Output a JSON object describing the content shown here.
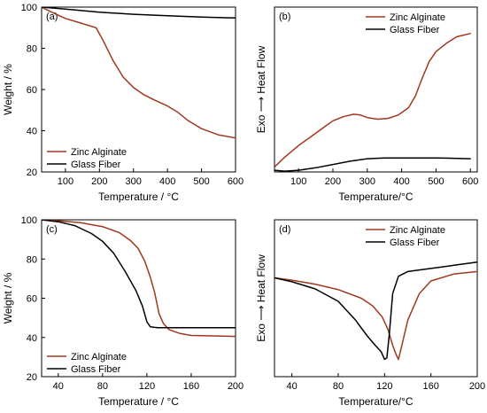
{
  "colors": {
    "zinc_alginate": "#a0381f",
    "glass_fiber": "#000000"
  },
  "chart_data": [
    {
      "type": "line",
      "panel": "(a)",
      "xlabel": "Temperature / °C",
      "ylabel": "Weight / %",
      "xlim": [
        30,
        600
      ],
      "ylim": [
        20,
        100
      ],
      "xticks": [
        100,
        200,
        300,
        400,
        500,
        600
      ],
      "yticks": [
        20,
        40,
        60,
        80,
        100
      ],
      "show_ytick_labels": true,
      "legend_position": "bottom-left",
      "series": [
        {
          "name": "Zinc Alginate",
          "color": "#a0381f",
          "x": [
            30,
            60,
            100,
            150,
            190,
            210,
            240,
            270,
            300,
            330,
            360,
            400,
            430,
            460,
            500,
            550,
            600
          ],
          "y": [
            100,
            97.5,
            94.5,
            92,
            90,
            84,
            74,
            66,
            61,
            57.5,
            55,
            52,
            49,
            45,
            41,
            38,
            36.5
          ]
        },
        {
          "name": "Glass Fiber",
          "color": "#000000",
          "x": [
            30,
            100,
            200,
            300,
            400,
            500,
            600
          ],
          "y": [
            100,
            99,
            97.5,
            96.5,
            95.8,
            95.2,
            94.7
          ]
        }
      ]
    },
    {
      "type": "line",
      "panel": "(b)",
      "xlabel": "Temperature/°C",
      "ylabel": "Exo ⟶  Heat Flow",
      "xlim": [
        30,
        620
      ],
      "ylim": [
        0,
        100
      ],
      "xticks": [
        100,
        200,
        300,
        400,
        500,
        600
      ],
      "yticks": [],
      "show_ytick_labels": false,
      "legend_position": "top-right",
      "series": [
        {
          "name": "Zinc Alginate",
          "color": "#a0381f",
          "x": [
            30,
            60,
            100,
            140,
            180,
            200,
            230,
            260,
            280,
            300,
            330,
            360,
            390,
            420,
            440,
            460,
            480,
            500,
            530,
            560,
            600
          ],
          "y": [
            3,
            9,
            16,
            22,
            28,
            31,
            33.5,
            35,
            34.5,
            33,
            32,
            32.5,
            34.5,
            39,
            46,
            57,
            67,
            73,
            78,
            82,
            84
          ]
        },
        {
          "name": "Glass Fiber",
          "color": "#000000",
          "x": [
            30,
            60,
            100,
            150,
            200,
            250,
            300,
            350,
            400,
            450,
            500,
            550,
            600
          ],
          "y": [
            1,
            0.5,
            1,
            2.5,
            4.5,
            6.5,
            8,
            8.5,
            8.5,
            8.5,
            8.5,
            8.3,
            8
          ]
        }
      ]
    },
    {
      "type": "line",
      "panel": "(c)",
      "xlabel": "Temperature / °C",
      "ylabel": "Weight / %",
      "xlim": [
        25,
        200
      ],
      "ylim": [
        20,
        100
      ],
      "xticks": [
        40,
        80,
        120,
        160,
        200
      ],
      "yticks": [
        20,
        40,
        60,
        80,
        100
      ],
      "show_ytick_labels": true,
      "legend_position": "bottom-left",
      "series": [
        {
          "name": "Zinc Alginate",
          "color": "#a0381f",
          "x": [
            25,
            40,
            60,
            80,
            95,
            105,
            112,
            118,
            123,
            127,
            131,
            135,
            140,
            150,
            160,
            180,
            200
          ],
          "y": [
            100,
            99.5,
            98.5,
            96.5,
            93.5,
            89.5,
            85.5,
            79,
            71,
            63,
            52,
            47,
            44,
            42,
            41,
            40.8,
            40.5
          ]
        },
        {
          "name": "Glass Fiber",
          "color": "#000000",
          "x": [
            25,
            40,
            55,
            70,
            80,
            90,
            100,
            110,
            116,
            120,
            123,
            126,
            130,
            140,
            160,
            200
          ],
          "y": [
            100,
            99,
            97,
            93,
            89,
            83,
            74,
            64,
            56,
            48,
            45.5,
            45.2,
            45,
            45,
            45,
            45
          ]
        }
      ]
    },
    {
      "type": "line",
      "panel": "(d)",
      "xlabel": "Temperature/°C",
      "ylabel": "Exo ⟶  Heat Flow",
      "xlim": [
        25,
        200
      ],
      "ylim": [
        0,
        100
      ],
      "xticks": [
        40,
        80,
        120,
        160,
        200
      ],
      "yticks": [],
      "show_ytick_labels": false,
      "legend_position": "top-right",
      "series": [
        {
          "name": "Zinc Alginate",
          "color": "#a0381f",
          "x": [
            25,
            40,
            60,
            80,
            100,
            110,
            118,
            123,
            127,
            130,
            132,
            135,
            140,
            150,
            160,
            180,
            200
          ],
          "y": [
            63,
            61.5,
            59,
            55.5,
            50,
            45,
            38,
            30,
            20,
            14,
            11,
            20,
            36,
            53,
            61,
            65.5,
            67
          ]
        },
        {
          "name": "Glass Fiber",
          "color": "#000000",
          "x": [
            25,
            40,
            60,
            80,
            95,
            105,
            112,
            117,
            120,
            122,
            124,
            127,
            132,
            140,
            160,
            180,
            200
          ],
          "y": [
            63,
            60.5,
            56,
            48,
            36,
            26,
            20,
            16,
            11,
            12,
            26,
            53,
            64,
            67,
            69,
            71,
            73
          ]
        }
      ]
    }
  ]
}
